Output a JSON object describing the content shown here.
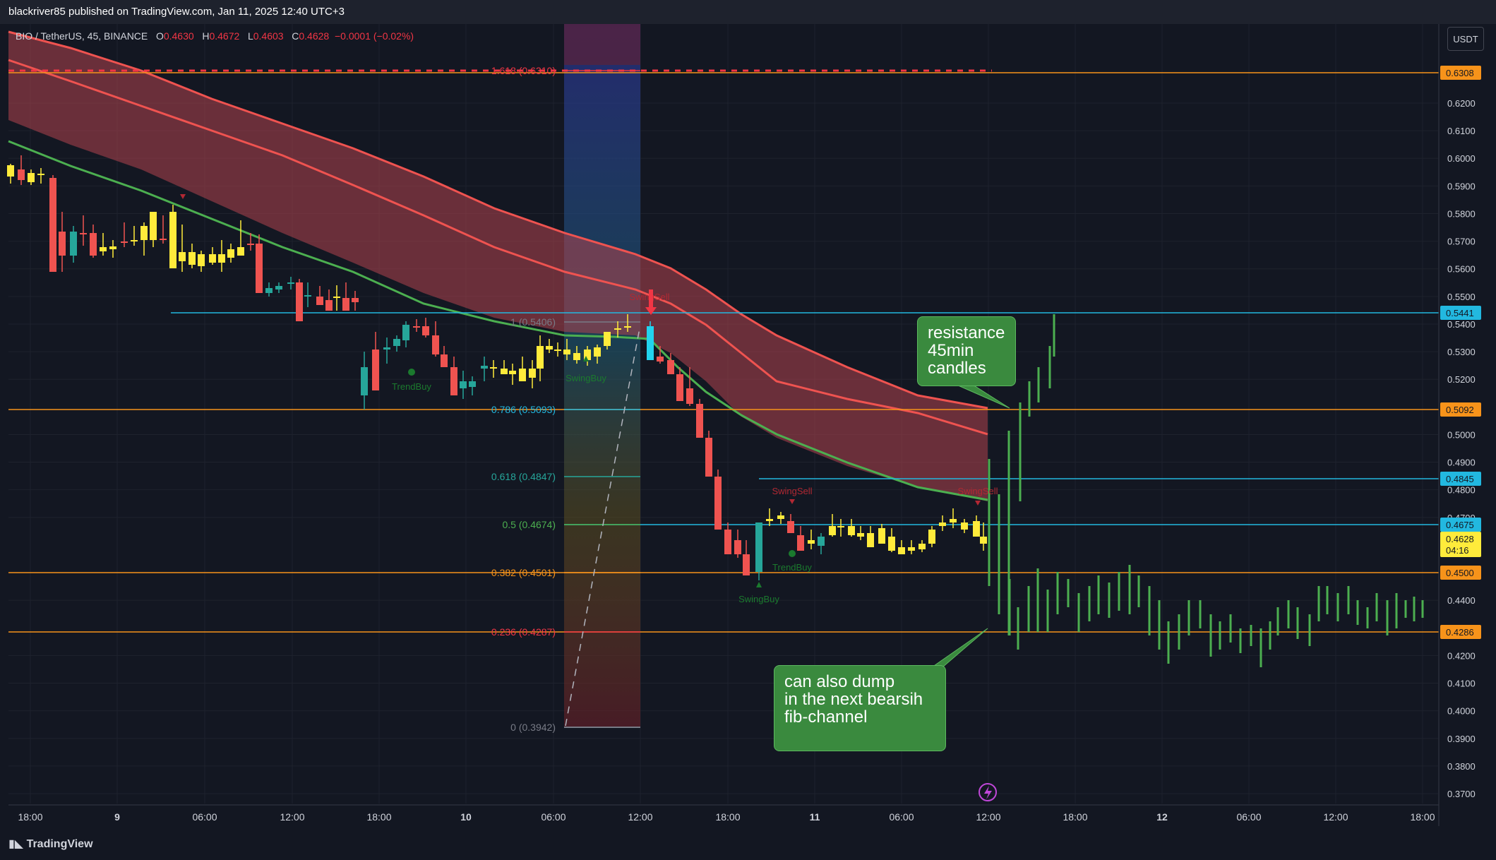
{
  "header": {
    "publish_line": "blackriver85 published on TradingView.com, Jan 11, 2025 12:40 UTC+3"
  },
  "legend": {
    "symbol": "BIO / TetherUS, 45, BINANCE",
    "o_label": "O",
    "o": "0.4630",
    "h_label": "H",
    "h": "0.4672",
    "l_label": "L",
    "l": "0.4603",
    "c_label": "C",
    "c": "0.4628",
    "change": "−0.0001 (−0.02%)"
  },
  "currency_button": "USDT",
  "brand": "TradingView",
  "y_axis": {
    "ticks": [
      "0.6200",
      "0.6100",
      "0.6000",
      "0.5900",
      "0.5800",
      "0.5700",
      "0.5600",
      "0.5500",
      "0.5400",
      "0.5300",
      "0.5200",
      "0.5000",
      "0.4900",
      "0.4800",
      "0.4700",
      "0.4400",
      "0.4200",
      "0.4100",
      "0.4000",
      "0.3900",
      "0.3800",
      "0.3700"
    ],
    "badges": [
      {
        "label": "0.6308",
        "color": "#f7931a"
      },
      {
        "label": "0.5441",
        "color": "#22b8e0"
      },
      {
        "label": "0.5092",
        "color": "#f7931a"
      },
      {
        "label": "0.4845",
        "color": "#22b8e0"
      },
      {
        "label": "0.4675",
        "color": "#22b8e0"
      },
      {
        "label": "0.4628",
        "color": "#ffeb3b"
      },
      {
        "label": "04:16",
        "color": "#ffeb3b"
      },
      {
        "label": "0.4500",
        "color": "#f7931a"
      },
      {
        "label": "0.4286",
        "color": "#f7931a"
      }
    ]
  },
  "x_axis": {
    "ticks": [
      "18:00",
      "9",
      "06:00",
      "12:00",
      "18:00",
      "10",
      "06:00",
      "12:00",
      "18:00",
      "11",
      "06:00",
      "12:00",
      "18:00",
      "12",
      "06:00",
      "12:00",
      "18:00"
    ]
  },
  "fib_labels": [
    "1.618 (0.6310)",
    "1 (0.5406)",
    "0.786 (0.5093)",
    "0.618 (0.4847)",
    "0.5 (0.4674)",
    "0.382 (0.4501)",
    "0.236 (0.4287)",
    "0 (0.3942)"
  ],
  "signals": [
    "TrendBuy",
    "SwingBuy",
    "SwingSell",
    "SwingSell",
    "TrendBuy",
    "SwingBuy",
    "SwingSell"
  ],
  "callouts": {
    "resistance": "resistance\n45min\ncandles",
    "dump": "can also dump\nin the next bearsih\nfib-channel"
  },
  "colors": {
    "up": "#26a69a",
    "down": "#ef5350",
    "bull_hl": "#ffeb3b",
    "orange_line": "#f7931a",
    "cyan_line": "#22b8e0",
    "callout": "#3a8a3e"
  }
}
